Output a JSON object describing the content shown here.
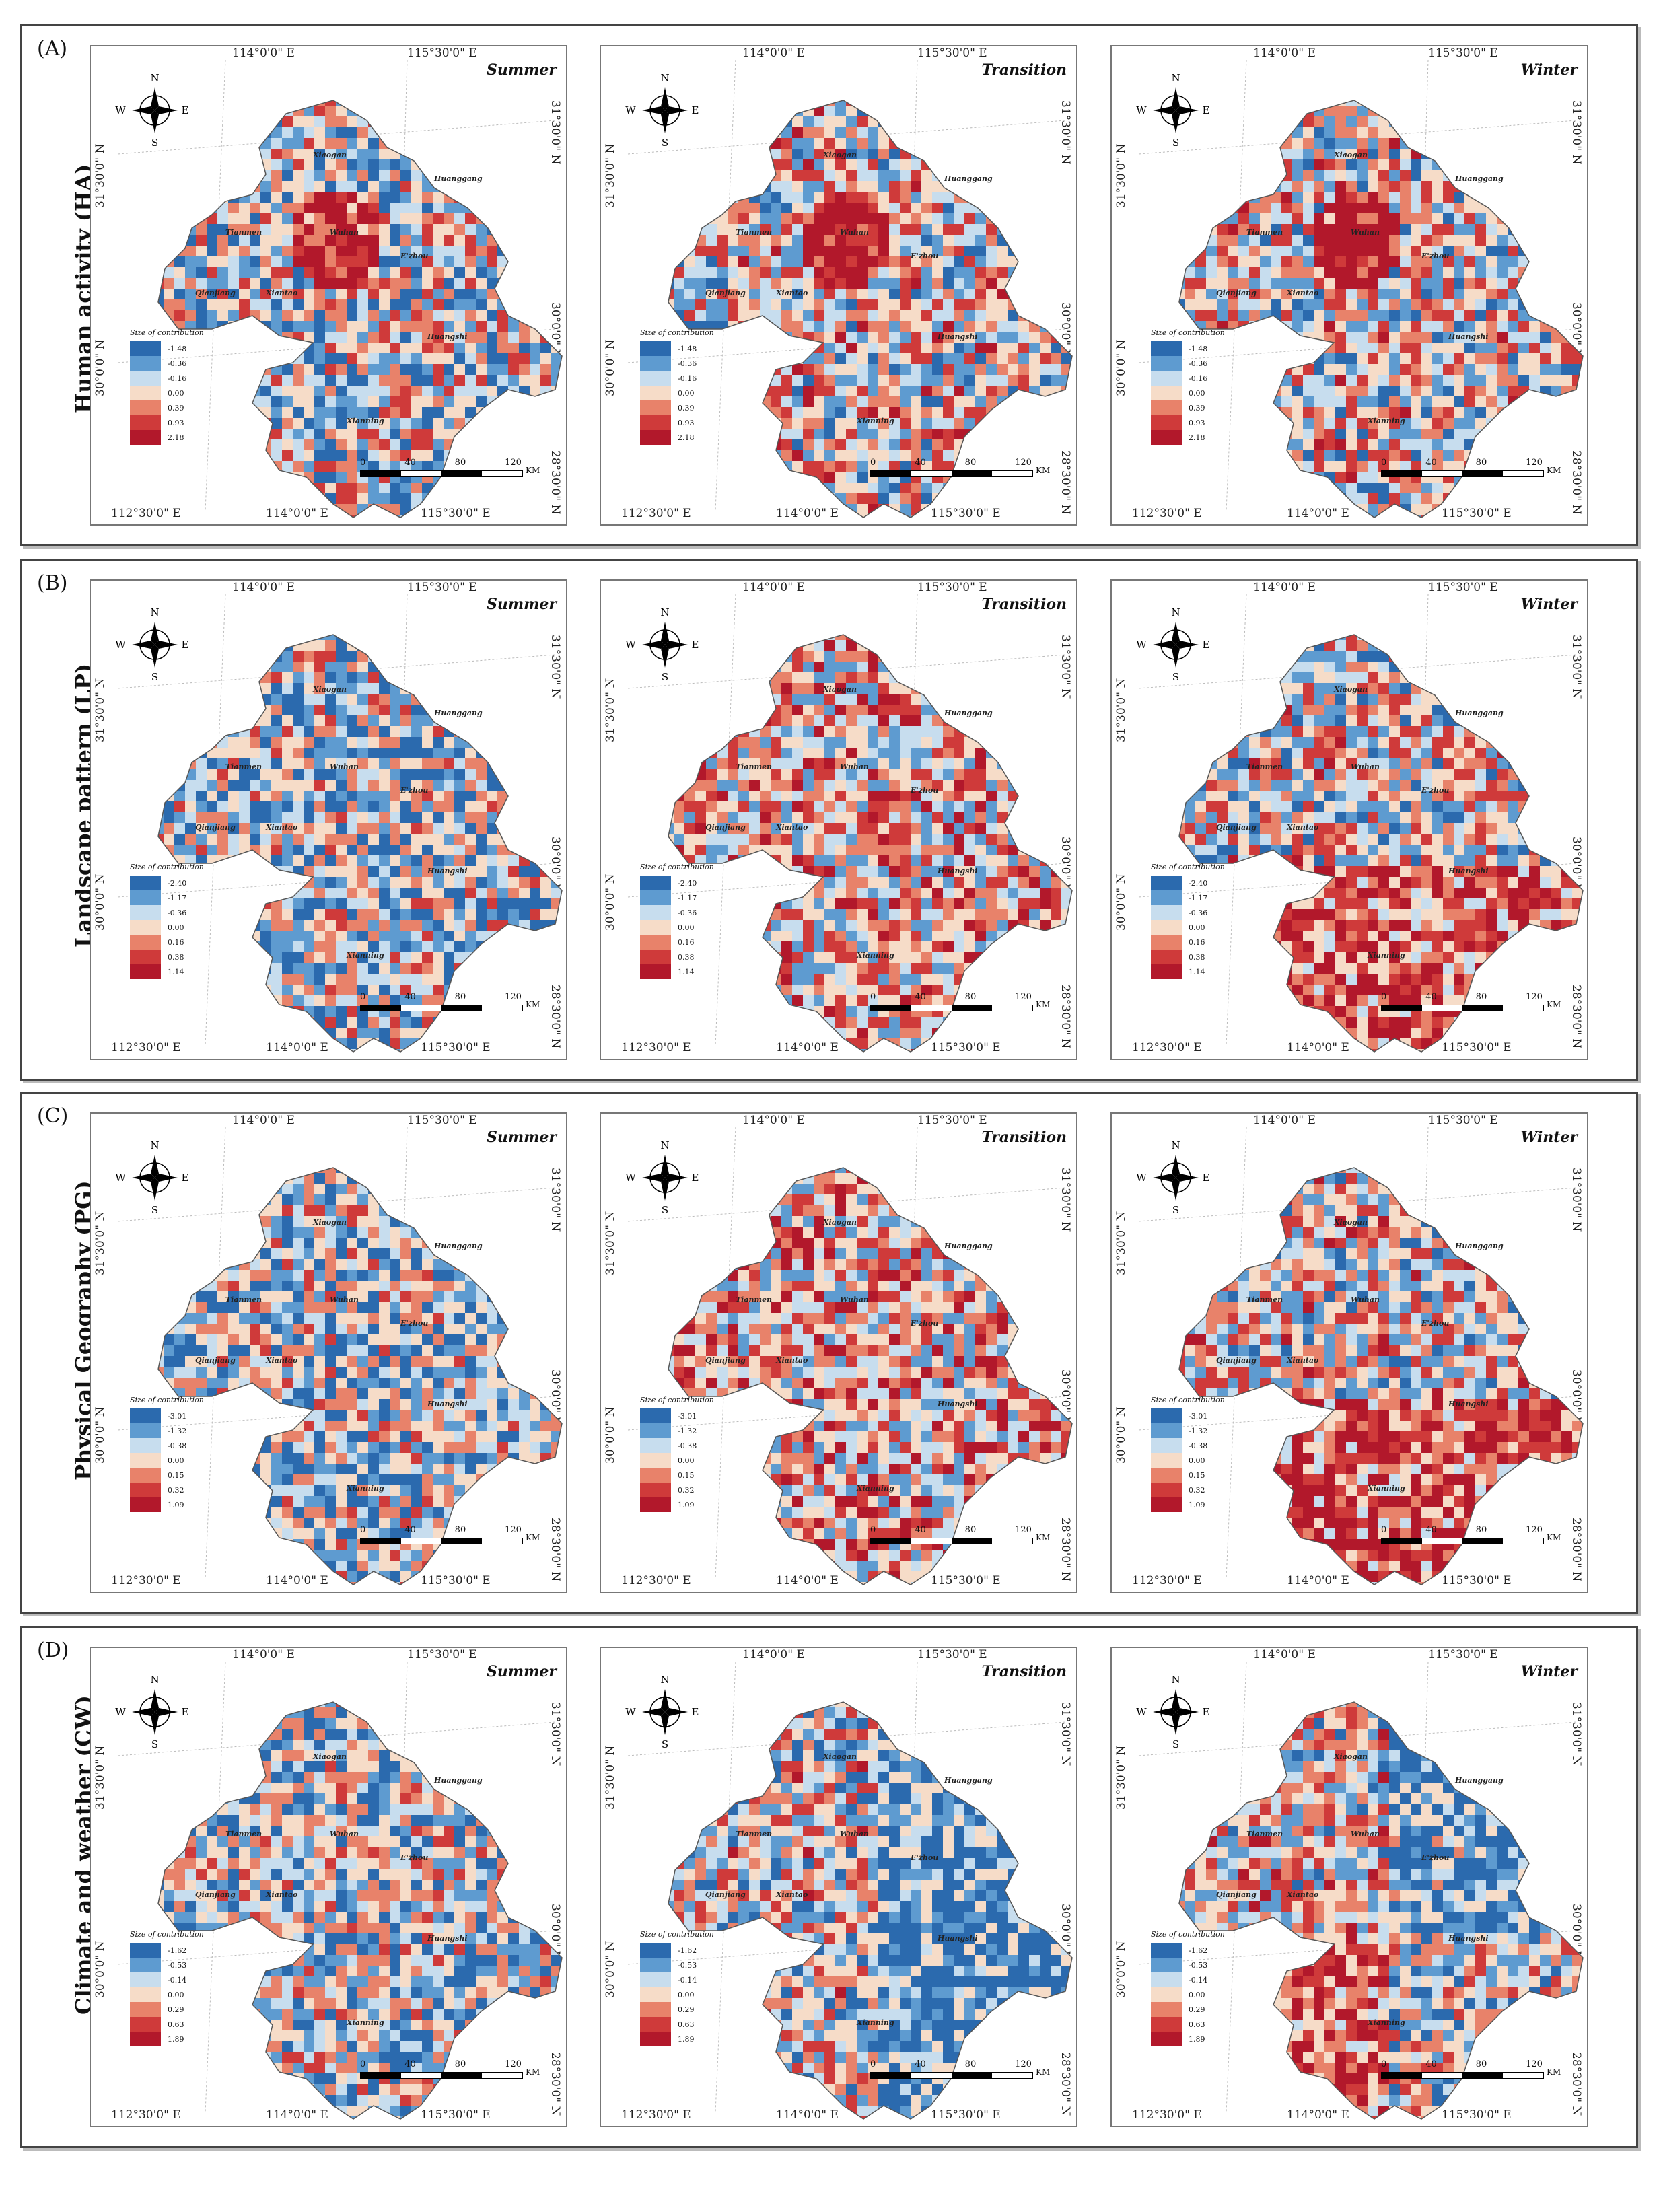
{
  "panels": [
    {
      "label": "(A)",
      "ylabel": "Human activity (HA)",
      "legend": [
        "-1.48",
        "-0.36",
        "-0.16",
        "0.00",
        "0.39",
        "0.93",
        "2.18"
      ]
    },
    {
      "label": "(B)",
      "ylabel": "Landscape pattern  (LP)",
      "legend": [
        "-2.40",
        "-1.17",
        "-0.36",
        "0.00",
        "0.16",
        "0.38",
        "1.14"
      ]
    },
    {
      "label": "(C)",
      "ylabel": "Physical Geography (PG)",
      "legend": [
        "-3.01",
        "-1.32",
        "-0.38",
        "0.00",
        "0.15",
        "0.32",
        "1.09"
      ]
    },
    {
      "label": "(D)",
      "ylabel": "Climate and weather (CW)",
      "legend": [
        "-1.62",
        "-0.53",
        "-0.14",
        "0.00",
        "0.29",
        "0.63",
        "1.89"
      ]
    }
  ],
  "seasons": [
    "Summer",
    "Transition",
    "Winter"
  ],
  "legend_title": "Size of contribution",
  "legend_colors": [
    "#2b6aae",
    "#5e9bd0",
    "#c7ddee",
    "#f6dcc8",
    "#e8826a",
    "#cf3a3a",
    "#b2182b"
  ],
  "coords": {
    "top_left": "114°0'0\" E",
    "top_right": "115°30'0\" E",
    "bottom_left": "112°30'0\" E",
    "bottom_mid": "114°0'0\" E",
    "bottom_right": "115°30'0\" E",
    "left_upper": "31°30'0\" N",
    "left_lower": "30°0'0\" N",
    "right_upper": "31°30'0\" N",
    "right_mid": "30°0'0\" N",
    "right_lower": "28°30'0\" N"
  },
  "compass": {
    "n": "N",
    "s": "S",
    "e": "E",
    "w": "W"
  },
  "scale": {
    "ticks": [
      "0",
      "40",
      "80",
      "120"
    ],
    "unit": "KM"
  },
  "cities": [
    "Xiaogan",
    "Huanggang",
    "Tianmen",
    "Wuhan",
    "E'zhou",
    "Qianjiang",
    "Xiantao",
    "Huangshi",
    "Xianning"
  ],
  "map_colors": {
    "blue_dark": "#2166ac",
    "blue_light": "#92c5de",
    "neutral": "#f7f7f7",
    "red_light": "#f4a582",
    "red_dark": "#b2182b"
  }
}
